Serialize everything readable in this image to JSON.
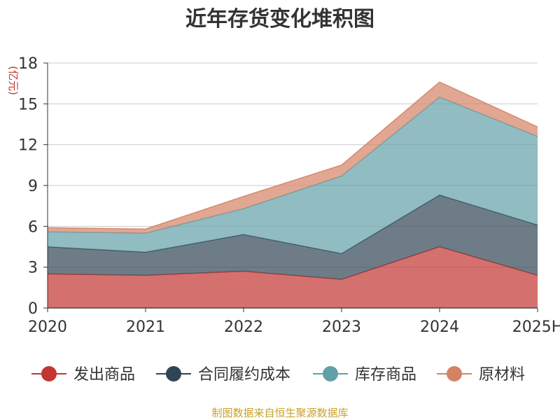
{
  "chart_data": {
    "type": "area",
    "stacked": true,
    "title": "近年存货变化堆积图",
    "ylabel": "(亿元)",
    "xlabel": "",
    "categories": [
      "2020",
      "2021",
      "2022",
      "2023",
      "2024",
      "2025H"
    ],
    "ylim": [
      0,
      18
    ],
    "yticks": [
      0,
      3,
      6,
      9,
      12,
      15,
      18
    ],
    "grid": true,
    "legend_position": "bottom",
    "series": [
      {
        "name": "发出商品",
        "color": "#c23531",
        "values": [
          2.5,
          2.4,
          2.7,
          2.1,
          4.5,
          2.4
        ]
      },
      {
        "name": "合同履约成本",
        "color": "#2f4554",
        "values": [
          2.0,
          1.7,
          2.7,
          1.9,
          3.8,
          3.7
        ]
      },
      {
        "name": "库存商品",
        "color": "#61a0a8",
        "values": [
          1.1,
          1.4,
          1.9,
          5.7,
          7.2,
          6.5
        ]
      },
      {
        "name": "原材料",
        "color": "#d48265",
        "values": [
          0.3,
          0.3,
          0.9,
          0.8,
          1.1,
          0.7
        ]
      }
    ],
    "colors": {
      "axis": "#333333",
      "grid": "#cccccc",
      "ylabel": "#c23531",
      "source": "#c9a227"
    }
  },
  "footer": {
    "source": "制图数据来自恒生聚源数据库"
  }
}
